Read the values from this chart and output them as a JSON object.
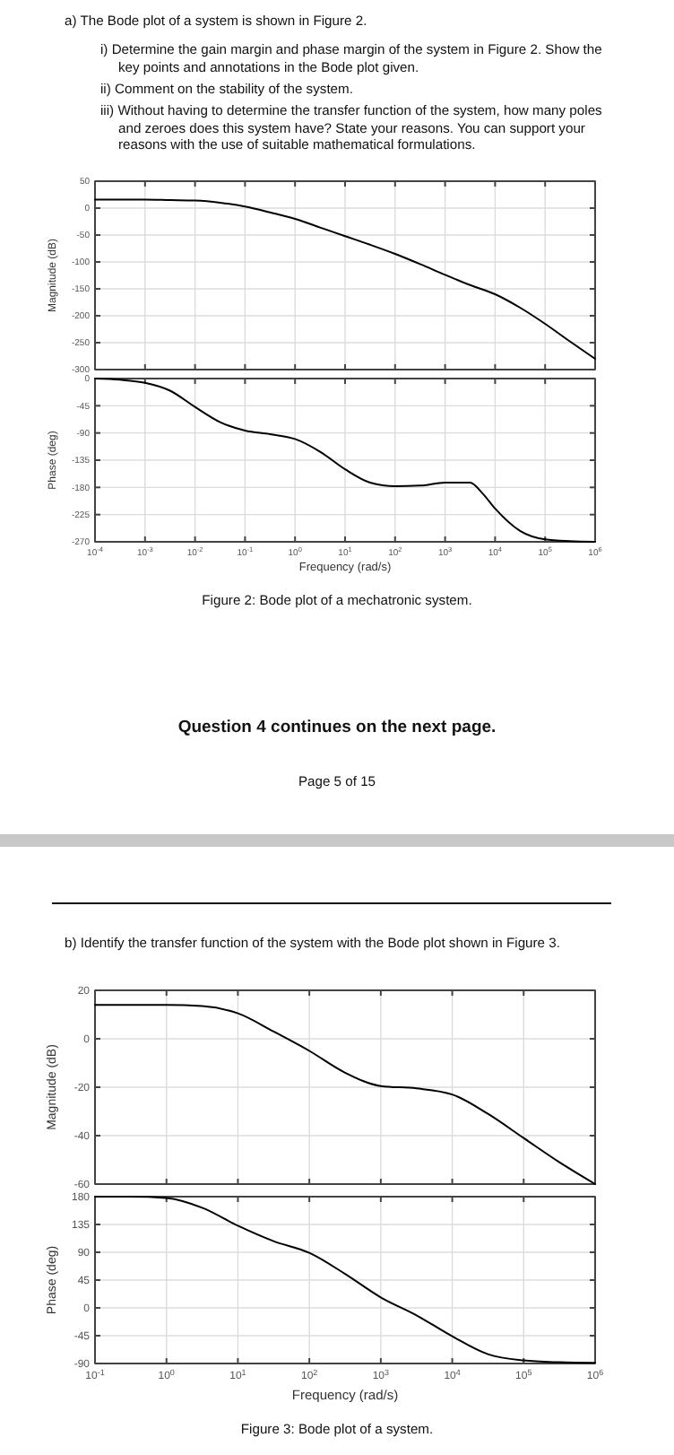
{
  "chart_data": [
    {
      "type": "line",
      "title": "a) The Bode plot of a system is shown in Figure 2.",
      "annotations": [
        "i) Determine the gain margin and phase margin of the system in Figure 2. Show the key points and annotations in the Bode plot given.",
        "ii) Comment on the stability of the system.",
        "iii) Without having to determine the transfer function of the system, how many poles and zeroes does this system have? State your reasons. You can support your reasons with the use of suitable mathematical formulations."
      ],
      "ylabel": "Magnitude (dB)",
      "log": "x",
      "grid": true,
      "tick_labels": "y",
      "x": [
        0.0001,
        0.0003162,
        0.001,
        0.003162,
        0.01,
        0.03162,
        0.1,
        0.3162,
        1,
        3.162,
        10,
        31.62,
        100,
        316.2,
        1000,
        3162,
        10000,
        31620,
        100000,
        316200,
        1000000
      ],
      "series": [
        {
          "color": "#000000",
          "values": [
            16,
            16,
            16,
            15,
            14,
            10,
            3,
            -8,
            -20,
            -36,
            -52,
            -68,
            -85,
            -104,
            -124,
            -143,
            -160,
            -185,
            -215,
            -248,
            -280
          ]
        }
      ],
      "xlim": [
        0.0001,
        1000000
      ],
      "xticks": [
        {
          "value": 0.0001,
          "label": null
        },
        {
          "value": 0.001,
          "label": null
        },
        {
          "value": 0.01,
          "label": null
        },
        {
          "value": 0.1,
          "label": null
        },
        {
          "value": 1,
          "label": null
        },
        {
          "value": 10,
          "label": null
        },
        {
          "value": 100,
          "label": null
        },
        {
          "value": 1000,
          "label": null
        },
        {
          "value": 10000,
          "label": null
        },
        {
          "value": 100000,
          "label": null
        },
        {
          "value": 1000000,
          "label": null
        }
      ],
      "ylim": [
        -300,
        50
      ],
      "yticks": [
        50,
        0,
        -50,
        -100,
        -150,
        -200,
        -250,
        -300
      ]
    },
    {
      "type": "line",
      "xlabel": "Frequency  (rad/s)",
      "ylabel": "Phase (deg)",
      "log": "x",
      "grid": true,
      "annotations": [
        "Figure 2: Bode plot of a mechatronic system.",
        "Question 4 continues on the next page.",
        "Page 5 of 15"
      ],
      "x": [
        0.0001,
        0.0003162,
        0.001,
        0.003162,
        0.01,
        0.03162,
        0.1,
        0.3162,
        1,
        3.162,
        10,
        31.62,
        100,
        316.2,
        1000,
        3162,
        5623,
        10000,
        31620,
        100000,
        316200,
        1000000
      ],
      "series": [
        {
          "color": "#000000",
          "values": [
            0,
            -2,
            -7,
            -20,
            -47,
            -72,
            -86,
            -92,
            -100,
            -121,
            -150,
            -172,
            -178,
            -177,
            -172,
            -172,
            -190,
            -215,
            -252,
            -266,
            -269,
            -270
          ]
        }
      ],
      "xlim": [
        0.0001,
        1000000
      ],
      "xticks": [
        {
          "value": 0.0001,
          "label": "10$^{-4}$"
        },
        {
          "value": 0.001,
          "label": "10$^{-3}$"
        },
        {
          "value": 0.01,
          "label": "10$^{-2}$"
        },
        {
          "value": 0.1,
          "label": "10$^{-1}$"
        },
        {
          "value": 1,
          "label": "10$^{0}$"
        },
        {
          "value": 10,
          "label": "10$^{1}$"
        },
        {
          "value": 100,
          "label": "10$^{2}$"
        },
        {
          "value": 1000,
          "label": "10$^{3}$"
        },
        {
          "value": 10000,
          "label": "10$^{4}$"
        },
        {
          "value": 100000,
          "label": "10$^{5}$"
        },
        {
          "value": 1000000,
          "label": "10$^{6}$"
        }
      ],
      "ylim": [
        -270,
        0
      ],
      "yticks": [
        0,
        -45,
        -90,
        -135,
        -180,
        -225,
        -270
      ]
    },
    {
      "type": "line",
      "title": "b) Identify the transfer function of the system with the Bode plot shown in Figure 3.",
      "ylabel": "Magnitude (dB)",
      "log": "x",
      "grid": true,
      "tick_labels": "y",
      "x": [
        0.1,
        0.3162,
        1,
        3.162,
        10,
        31.62,
        100,
        316.2,
        1000,
        3162,
        10000,
        31620,
        100000,
        316200,
        1000000
      ],
      "series": [
        {
          "color": "#000000",
          "values": [
            14,
            14,
            14,
            13.5,
            10.5,
            3,
            -5,
            -14,
            -19.5,
            -20.5,
            -23,
            -31,
            -41,
            -51,
            -60
          ]
        }
      ],
      "xlim": [
        0.1,
        1000000
      ],
      "xticks": [
        {
          "value": 0.1,
          "label": null
        },
        {
          "value": 1,
          "label": null
        },
        {
          "value": 10,
          "label": null
        },
        {
          "value": 100,
          "label": null
        },
        {
          "value": 1000,
          "label": null
        },
        {
          "value": 10000,
          "label": null
        },
        {
          "value": 100000,
          "label": null
        },
        {
          "value": 1000000,
          "label": null
        }
      ],
      "ylim": [
        -60,
        20
      ],
      "yticks": [
        20,
        0,
        -20,
        -40,
        -60
      ]
    },
    {
      "type": "line",
      "xlabel": "Frequency  (rad/s)",
      "ylabel": "Phase (deg)",
      "log": "x",
      "grid": true,
      "annotations": [
        "Figure 3: Bode plot of a system."
      ],
      "x": [
        0.1,
        0.3162,
        1,
        3.162,
        10,
        31.62,
        100,
        316.2,
        1000,
        3162,
        10000,
        31620,
        100000,
        316200,
        1000000
      ],
      "series": [
        {
          "color": "#000000",
          "values": [
            180,
            180,
            178,
            162,
            133,
            108,
            89,
            55,
            17,
            -12,
            -46,
            -75,
            -85,
            -88,
            -89
          ]
        }
      ],
      "xlim": [
        0.1,
        1000000
      ],
      "xticks": [
        {
          "value": 0.1,
          "label": "10$^{-1}$"
        },
        {
          "value": 1,
          "label": "10$^{0}$"
        },
        {
          "value": 10,
          "label": "10$^{1}$"
        },
        {
          "value": 100,
          "label": "10$^{2}$"
        },
        {
          "value": 1000,
          "label": "10$^{3}$"
        },
        {
          "value": 10000,
          "label": "10$^{4}$"
        },
        {
          "value": 100000,
          "label": "10$^{5}$"
        },
        {
          "value": 1000000,
          "label": "10$^{6}$"
        }
      ],
      "ylim": [
        -90,
        180
      ],
      "yticks": [
        180,
        135,
        90,
        45,
        0,
        -45,
        -90
      ]
    }
  ]
}
